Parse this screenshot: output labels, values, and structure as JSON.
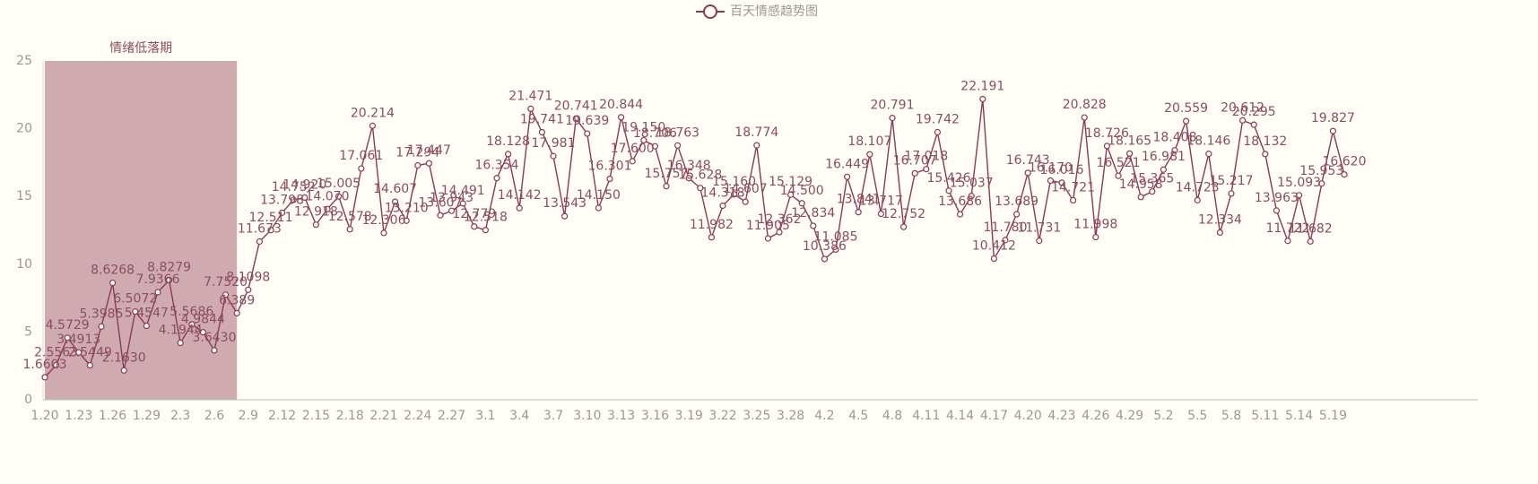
{
  "chart_data": {
    "type": "line",
    "legend": "百天情感趋势图",
    "legend_position": "top",
    "color": "#8b3a56",
    "mark_area": {
      "label": "情绪低落期",
      "start": 0,
      "end": 17,
      "color": "#cfabb1"
    },
    "categories": [
      "1.20",
      null,
      null,
      "1.23",
      null,
      null,
      "1.26",
      null,
      null,
      "1.29",
      null,
      null,
      "2.3",
      null,
      null,
      "2.6",
      null,
      null,
      "2.9",
      null,
      null,
      "2.12",
      null,
      null,
      "2.15",
      null,
      null,
      "2.18",
      null,
      null,
      "2.21",
      null,
      null,
      "2.24",
      null,
      null,
      "2.27",
      null,
      null,
      "3.1",
      null,
      null,
      "3.4",
      null,
      null,
      "3.7",
      null,
      null,
      "3.10",
      null,
      null,
      "3.13",
      null,
      null,
      "3.16",
      null,
      null,
      "3.19",
      null,
      null,
      "3.22",
      null,
      null,
      "3.25",
      null,
      null,
      "3.28",
      null,
      null,
      "4.2",
      null,
      null,
      "4.5",
      null,
      null,
      "4.8",
      null,
      null,
      "4.11",
      null,
      null,
      "4.14",
      null,
      null,
      "4.17",
      null,
      null,
      "4.20",
      null,
      null,
      "4.23",
      null,
      null,
      "4.26",
      null,
      null,
      "4.29",
      null,
      null,
      "5.2",
      null,
      null,
      "5.5",
      null,
      null,
      "5.8",
      null,
      null,
      "5.11",
      null,
      null,
      "5.14",
      null,
      null,
      "5.19",
      null
    ],
    "values": [
      1.6603,
      2.5563,
      4.5729,
      3.4913,
      2.5449,
      5.3985,
      8.6268,
      2.163,
      6.5072,
      5.4547,
      7.9366,
      8.8279,
      4.1944,
      5.5686,
      4.9844,
      3.643,
      7.752,
      6.389,
      8.1098,
      11.673,
      12.511,
      13.798,
      14.752,
      14.92,
      12.918,
      14.07,
      15.005,
      12.578,
      17.061,
      20.214,
      12.306,
      14.607,
      13.21,
      17.294,
      17.447,
      13.607,
      13.943,
      14.491,
      12.779,
      12.518,
      16.354,
      18.128,
      14.142,
      21.471,
      19.741,
      17.981,
      13.543,
      20.741,
      19.639,
      14.15,
      16.301,
      20.844,
      17.6,
      19.15,
      18.706,
      15.757,
      18.763,
      16.348,
      15.628,
      11.982,
      14.318,
      15.16,
      14.607,
      18.774,
      11.905,
      12.362,
      15.129,
      14.5,
      12.834,
      10.386,
      11.085,
      16.449,
      13.841,
      18.107,
      13.717,
      20.791,
      12.752,
      16.707,
      17.018,
      19.742,
      15.426,
      13.686,
      15.037,
      22.191,
      10.412,
      11.78,
      13.689,
      16.743,
      11.731,
      16.17,
      16.016,
      14.721,
      20.828,
      11.998,
      18.726,
      16.521,
      18.165,
      14.958,
      15.365,
      16.981,
      18.408,
      20.559,
      14.723,
      18.146,
      12.334,
      15.217,
      20.612,
      20.295,
      18.132,
      13.963,
      11.722,
      15.093,
      11.682,
      15.953,
      19.827,
      16.62
    ],
    "value_labels": [
      "1.6603",
      "2.5563",
      "4.5729",
      "3.4913",
      "2.5449",
      "5.3985",
      "8.6268",
      "2.1630",
      "6.5072",
      "5.4547",
      "7.9366",
      "8.8279",
      "4.1944",
      "5.5686",
      "4.9844",
      "3.6430",
      "7.7520",
      "6.389",
      "8.1098",
      "11.673",
      "12.511",
      "13.798",
      "14.752",
      "14.920",
      "12.918",
      "14.070",
      "15.005",
      "12.578",
      "17.061",
      "20.214",
      "12.306",
      "14.607",
      "13.210",
      "17.294",
      "17.447",
      "13.607",
      "13.943",
      "14.491",
      "12.779",
      "12.518",
      "16.354",
      "18.128",
      "14.142",
      "21.471",
      "19.741",
      "17.981",
      "13.543",
      "20.741",
      "19.639",
      "14.150",
      "16.301",
      "20.844",
      "17.600",
      "19.150",
      "18.706",
      "15.757",
      "18.763",
      "16.348",
      "15.628",
      "11.982",
      "14.318",
      "15.160",
      "14.607",
      "18.774",
      "11.905",
      "12.362",
      "15.129",
      "14.500",
      "12.834",
      "10.386",
      "11.085",
      "16.449",
      "13.841",
      "18.107",
      "13.717",
      "20.791",
      "12.752",
      "16.707",
      "17.018",
      "19.742",
      "15.426",
      "13.686",
      "15.037",
      "22.191",
      "10.412",
      "11.780",
      "13.689",
      "16.743",
      "11.731",
      "16.170",
      "16.016",
      "14.721",
      "20.828",
      "11.998",
      "18.726",
      "16.521",
      "18.165",
      "14.958",
      "15.365",
      "16.981",
      "18.408",
      "20.559",
      "14.723",
      "18.146",
      "12.334",
      "15.217",
      "20.612",
      "20.295",
      "18.132",
      "13.963",
      "11.722",
      "15.093",
      "11.682",
      "15.953",
      "19.827",
      "16.620"
    ],
    "ylim": [
      0,
      25
    ],
    "yticks": [
      0,
      5,
      10,
      15,
      20,
      25
    ],
    "grid": false
  }
}
